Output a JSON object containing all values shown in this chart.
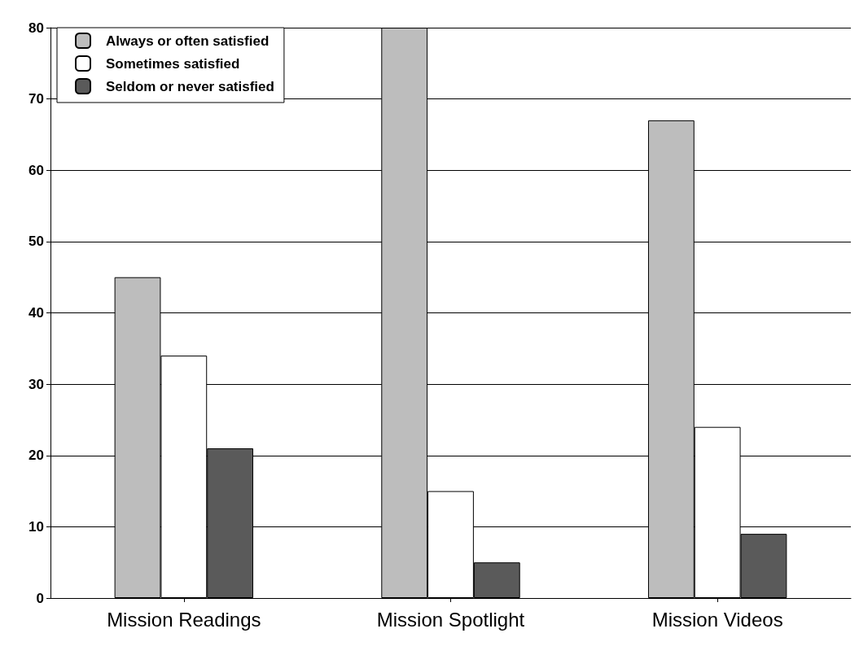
{
  "chart_data": {
    "type": "bar",
    "categories": [
      "Mission Readings",
      "Mission Spotlight",
      "Mission Videos"
    ],
    "series": [
      {
        "name": "Always or often satisfied",
        "color": "#bdbdbd",
        "values": [
          45,
          80,
          67
        ]
      },
      {
        "name": "Sometimes satisfied",
        "color": "#ffffff",
        "values": [
          34,
          15,
          24
        ]
      },
      {
        "name": "Seldom or never satisfied",
        "color": "#5a5a5a",
        "values": [
          21,
          5,
          9
        ]
      }
    ],
    "ylim": [
      0,
      80
    ],
    "yticks": [
      0,
      10,
      20,
      30,
      40,
      50,
      60,
      70,
      80
    ],
    "grid": "y",
    "legend": "top left"
  }
}
